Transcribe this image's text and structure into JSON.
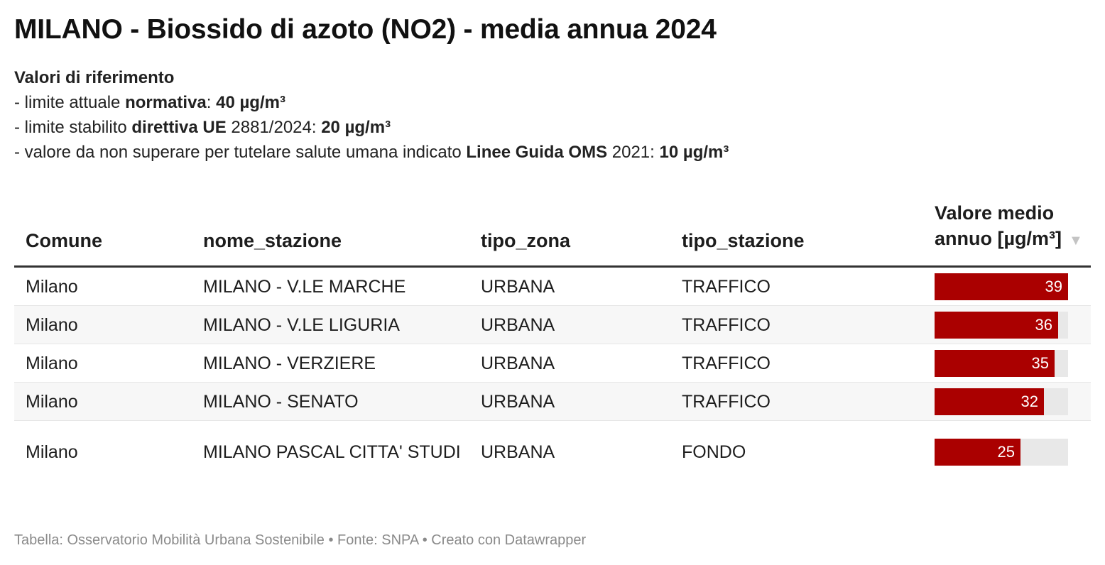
{
  "title": "MILANO - Biossido di azoto (NO2) - media annua 2024",
  "reference": {
    "heading": "Valori di riferimento",
    "lines": [
      [
        {
          "text": "- limite attuale ",
          "bold": false
        },
        {
          "text": "normativa",
          "bold": true
        },
        {
          "text": ": ",
          "bold": false
        },
        {
          "text": "40 µg/m³",
          "bold": true
        }
      ],
      [
        {
          "text": "- limite stabilito ",
          "bold": false
        },
        {
          "text": "direttiva UE",
          "bold": true
        },
        {
          "text": " 2881/2024: ",
          "bold": false
        },
        {
          "text": "20 µg/m³",
          "bold": true
        }
      ],
      [
        {
          "text": "- valore da non superare per tutelare salute umana indicato ",
          "bold": false
        },
        {
          "text": "Linee Guida OMS",
          "bold": true
        },
        {
          "text": " 2021: ",
          "bold": false
        },
        {
          "text": "10 µg/m³",
          "bold": true
        }
      ]
    ]
  },
  "chart_data": {
    "type": "table",
    "columns": [
      "Comune",
      "nome_stazione",
      "tipo_zona",
      "tipo_stazione",
      "Valore medio annuo [µg/m³]"
    ],
    "sort_indicator": "▼",
    "rows": [
      {
        "comune": "Milano",
        "nome_stazione": "MILANO - V.LE MARCHE",
        "tipo_zona": "URBANA",
        "tipo_stazione": "TRAFFICO",
        "valore": 39
      },
      {
        "comune": "Milano",
        "nome_stazione": "MILANO - V.LE LIGURIA",
        "tipo_zona": "URBANA",
        "tipo_stazione": "TRAFFICO",
        "valore": 36
      },
      {
        "comune": "Milano",
        "nome_stazione": "MILANO - VERZIERE",
        "tipo_zona": "URBANA",
        "tipo_stazione": "TRAFFICO",
        "valore": 35
      },
      {
        "comune": "Milano",
        "nome_stazione": "MILANO - SENATO",
        "tipo_zona": "URBANA",
        "tipo_stazione": "TRAFFICO",
        "valore": 32
      },
      {
        "comune": "Milano",
        "nome_stazione": "MILANO PASCAL CITTA' STUDI",
        "tipo_zona": "URBANA",
        "tipo_stazione": "FONDO",
        "valore": 25
      }
    ],
    "bar_max": 39,
    "colors": {
      "bar": "#aa0000",
      "track": "#e8e8e8"
    }
  },
  "footer": "Tabella: Osservatorio Mobilità Urbana Sostenibile • Fonte: SNPA • Creato con Datawrapper"
}
